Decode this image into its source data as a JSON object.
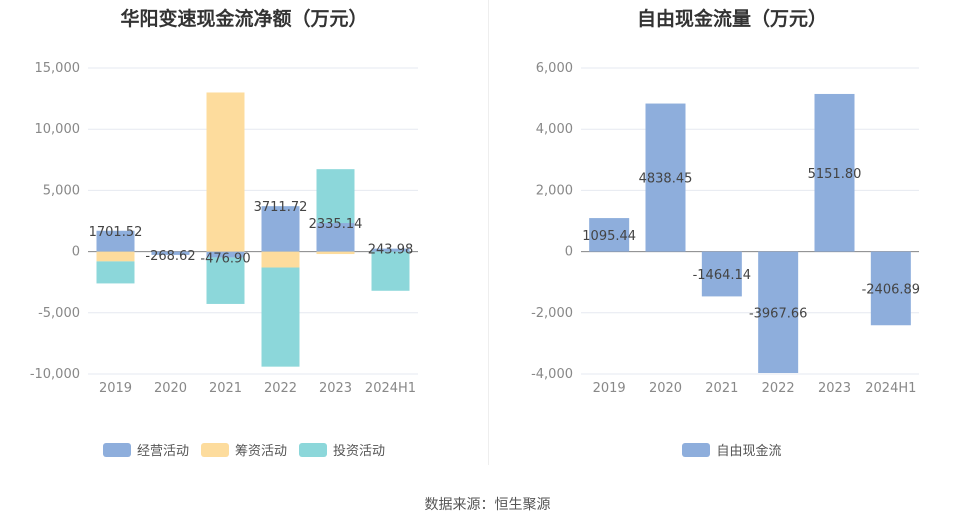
{
  "source": "数据来源：恒生聚源",
  "chart_data": [
    {
      "type": "bar",
      "stacked": true,
      "title": "华阳变速现金流净额（万元）",
      "categories": [
        "2019",
        "2020",
        "2021",
        "2022",
        "2023",
        "2024H1"
      ],
      "ylim": [
        -10000,
        15000
      ],
      "yticks": [
        15000,
        10000,
        5000,
        0,
        -5000,
        -10000
      ],
      "ytick_labels": [
        "15,000",
        "10,000",
        "5,000",
        "0",
        "-5,000",
        "-10,000"
      ],
      "grid": true,
      "legend_position": "bottom",
      "series": [
        {
          "name": "经营活动",
          "color": "#8eaedc",
          "values": [
            1701.52,
            -268.62,
            -476.9,
            3711.72,
            2335.14,
            243.98
          ],
          "labels": [
            "1701.52",
            "-268.62",
            "-476.90",
            "3711.72",
            "2335.14",
            "243.98"
          ]
        },
        {
          "name": "筹资活动",
          "color": "#fddc9d",
          "values": [
            -800,
            0,
            13000,
            -1300,
            -200,
            0
          ]
        },
        {
          "name": "投资活动",
          "color": "#8cd7da",
          "values": [
            -1800,
            0,
            -3800,
            -8100,
            4400,
            -3200
          ]
        }
      ]
    },
    {
      "type": "bar",
      "title": "自由现金流量（万元）",
      "categories": [
        "2019",
        "2020",
        "2021",
        "2022",
        "2023",
        "2024H1"
      ],
      "ylim": [
        -4000,
        6000
      ],
      "yticks": [
        6000,
        4000,
        2000,
        0,
        -2000,
        -4000
      ],
      "ytick_labels": [
        "6,000",
        "4,000",
        "2,000",
        "0",
        "-2,000",
        "-4,000"
      ],
      "grid": true,
      "legend_position": "bottom",
      "series": [
        {
          "name": "自由现金流",
          "color": "#8eaedc",
          "values": [
            1095.44,
            4838.45,
            -1464.14,
            -3967.66,
            5151.8,
            -2406.89
          ],
          "labels": [
            "1095.44",
            "4838.45",
            "-1464.14",
            "-3967.66",
            "5151.80",
            "-2406.89"
          ]
        }
      ]
    }
  ]
}
